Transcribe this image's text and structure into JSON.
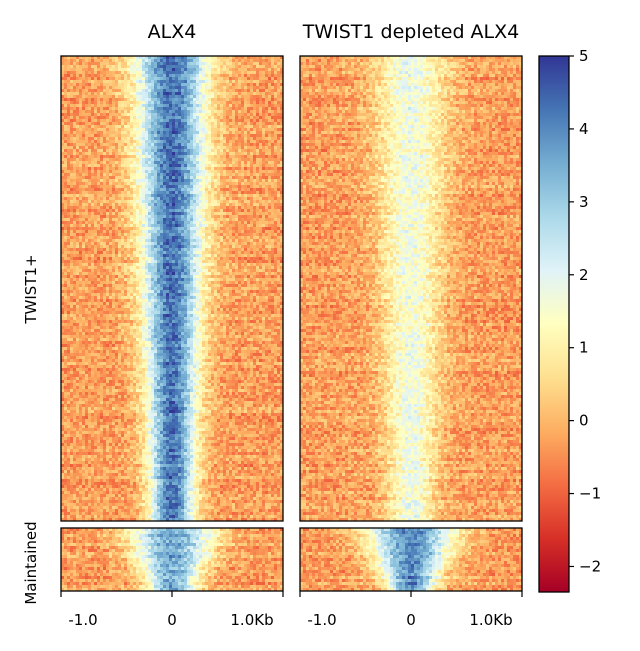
{
  "chart_data": {
    "type": "heatmap",
    "panels": [
      {
        "title": "ALX4",
        "center_strength_top": 1.0,
        "center_strength_bottom": 0.85
      },
      {
        "title": "TWIST1 depleted ALX4",
        "center_strength_top": 0.38,
        "center_strength_bottom": 0.95
      }
    ],
    "row_groups": [
      "TWIST1+",
      "Maintained"
    ],
    "x_ticks": [
      "-1.0",
      "0",
      "1.0Kb"
    ],
    "x_range_kb": [
      -1.0,
      1.0
    ],
    "colorbar": {
      "colormap": "RdYlBu",
      "range": [
        -2.35,
        5
      ],
      "ticks": [
        {
          "value": 5,
          "label": "5"
        },
        {
          "value": 4,
          "label": "4"
        },
        {
          "value": 3,
          "label": "3"
        },
        {
          "value": 2,
          "label": "2"
        },
        {
          "value": 1,
          "label": "1"
        },
        {
          "value": 0,
          "label": "0"
        },
        {
          "value": -1,
          "label": "−1"
        },
        {
          "value": -2,
          "label": "−2"
        }
      ]
    },
    "colors": {
      "low": "#a50026",
      "mid": "#ffffbf",
      "high": "#313695"
    }
  }
}
